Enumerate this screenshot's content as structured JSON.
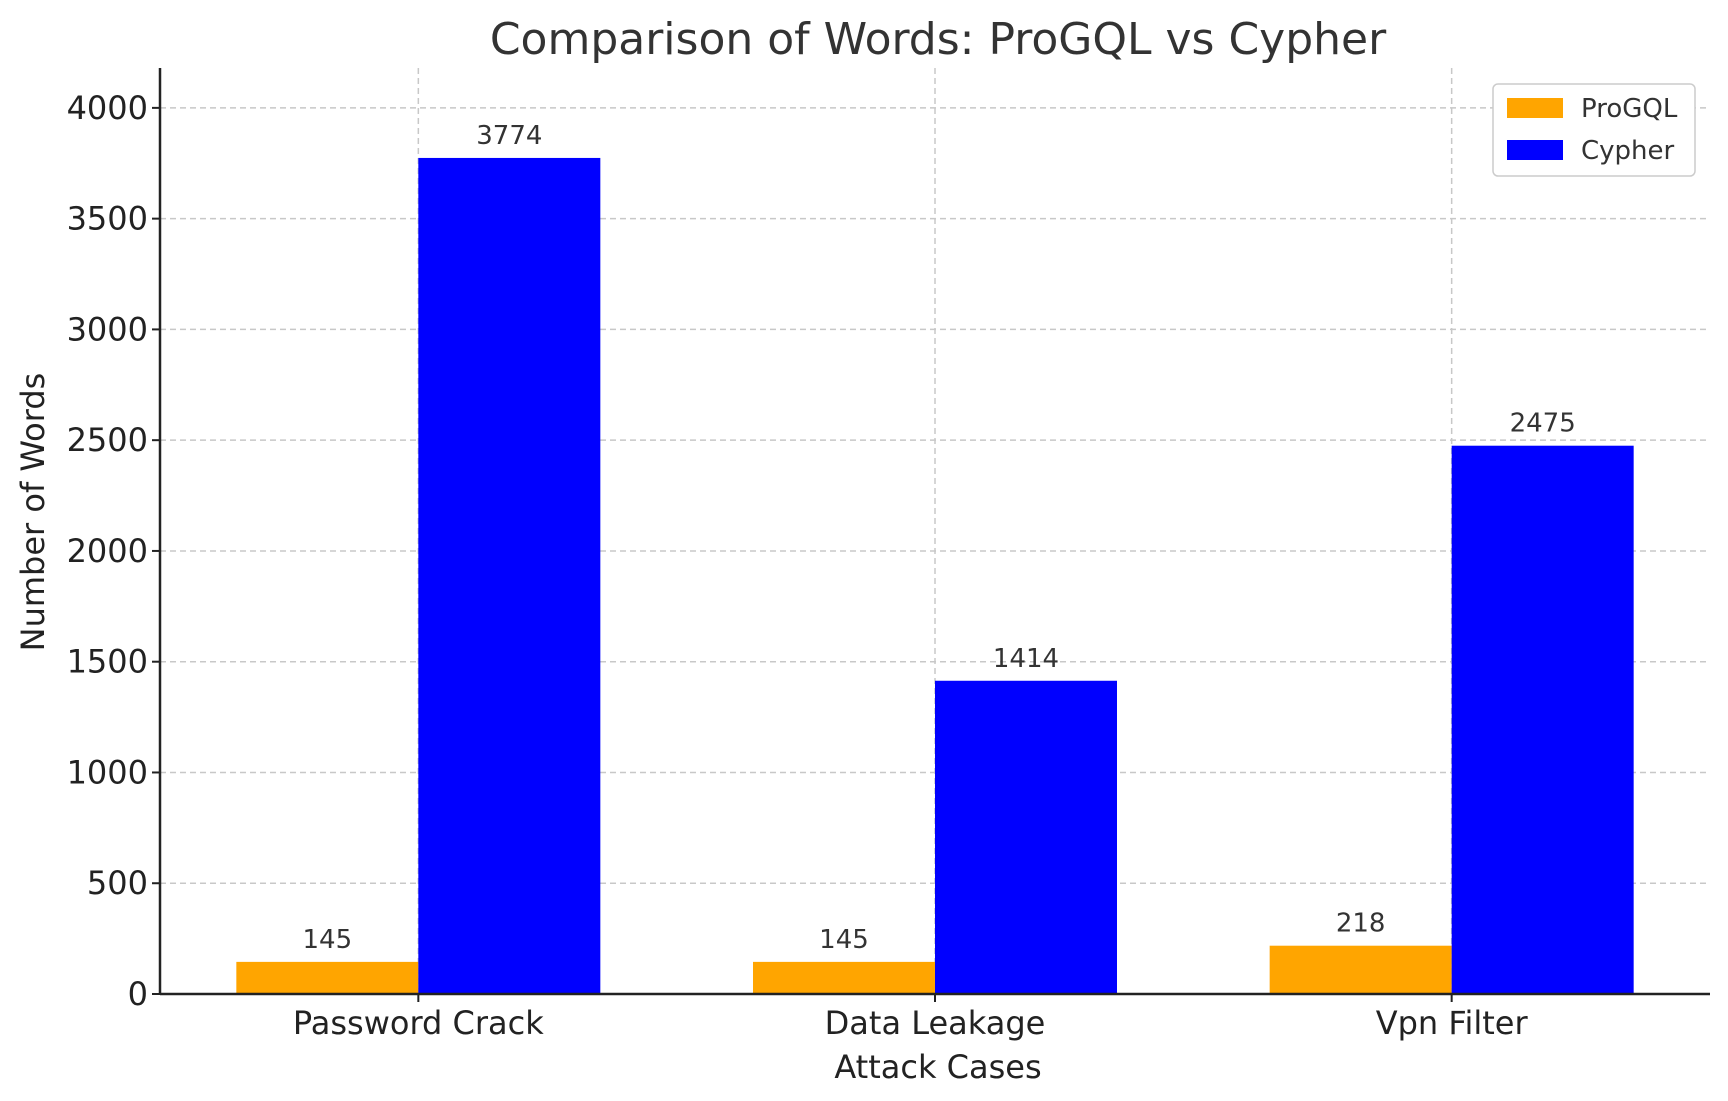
{
  "chart_data": {
    "type": "bar",
    "title": "Comparison of Words: ProGQL vs Cypher",
    "xlabel": "Attack Cases",
    "ylabel": "Number of Words",
    "categories": [
      "Password Crack",
      "Data Leakage",
      "Vpn Filter"
    ],
    "series": [
      {
        "name": "ProGQL",
        "color": "#ffa500",
        "values": [
          145,
          145,
          218
        ]
      },
      {
        "name": "Cypher",
        "color": "#0000ff",
        "values": [
          3774,
          1414,
          2475
        ]
      }
    ],
    "ylim": [
      0,
      4180
    ],
    "yticks": [
      0,
      500,
      1000,
      1500,
      2000,
      2500,
      3000,
      3500,
      4000
    ],
    "grid": true,
    "legend_position": "top-right"
  }
}
